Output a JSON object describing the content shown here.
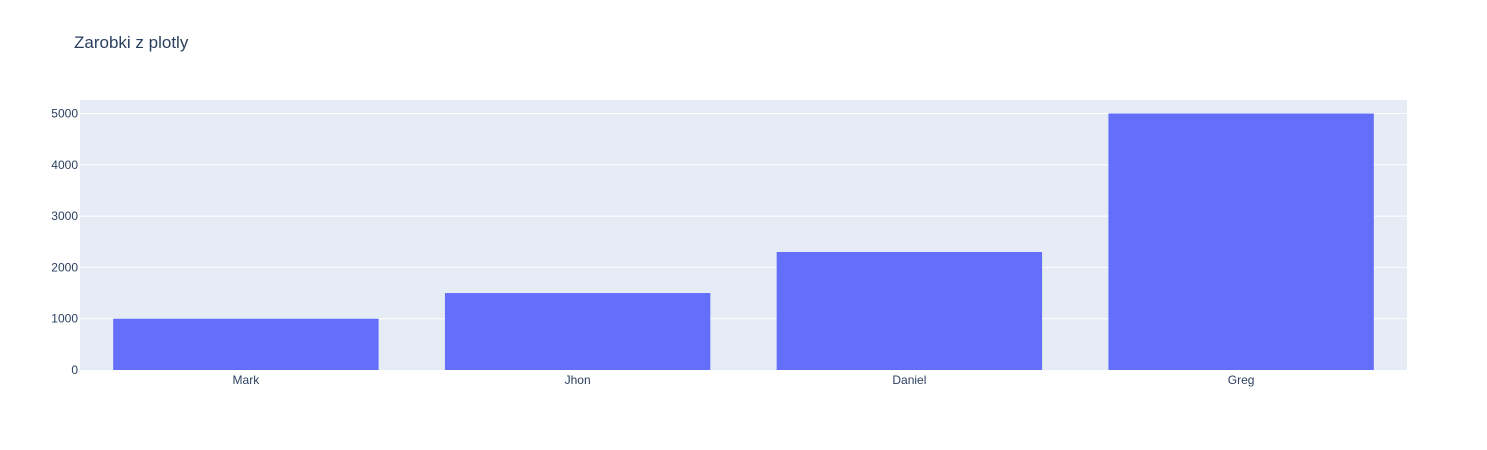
{
  "colors": {
    "plot_background": "#e5ecf6",
    "gridline": "#ffffff",
    "bar": "#636efa",
    "text": "#2a3f5f"
  },
  "chart_data": {
    "type": "bar",
    "title": "Zarobki z plotly",
    "xlabel": "",
    "ylabel": "",
    "categories": [
      "Mark",
      "Jhon",
      "Daniel",
      "Greg"
    ],
    "values": [
      1000,
      1500,
      2300,
      5000
    ],
    "ylim": [
      0,
      5263
    ],
    "yticks": [
      0,
      1000,
      2000,
      3000,
      4000,
      5000
    ],
    "grid": true,
    "legend": "none"
  }
}
